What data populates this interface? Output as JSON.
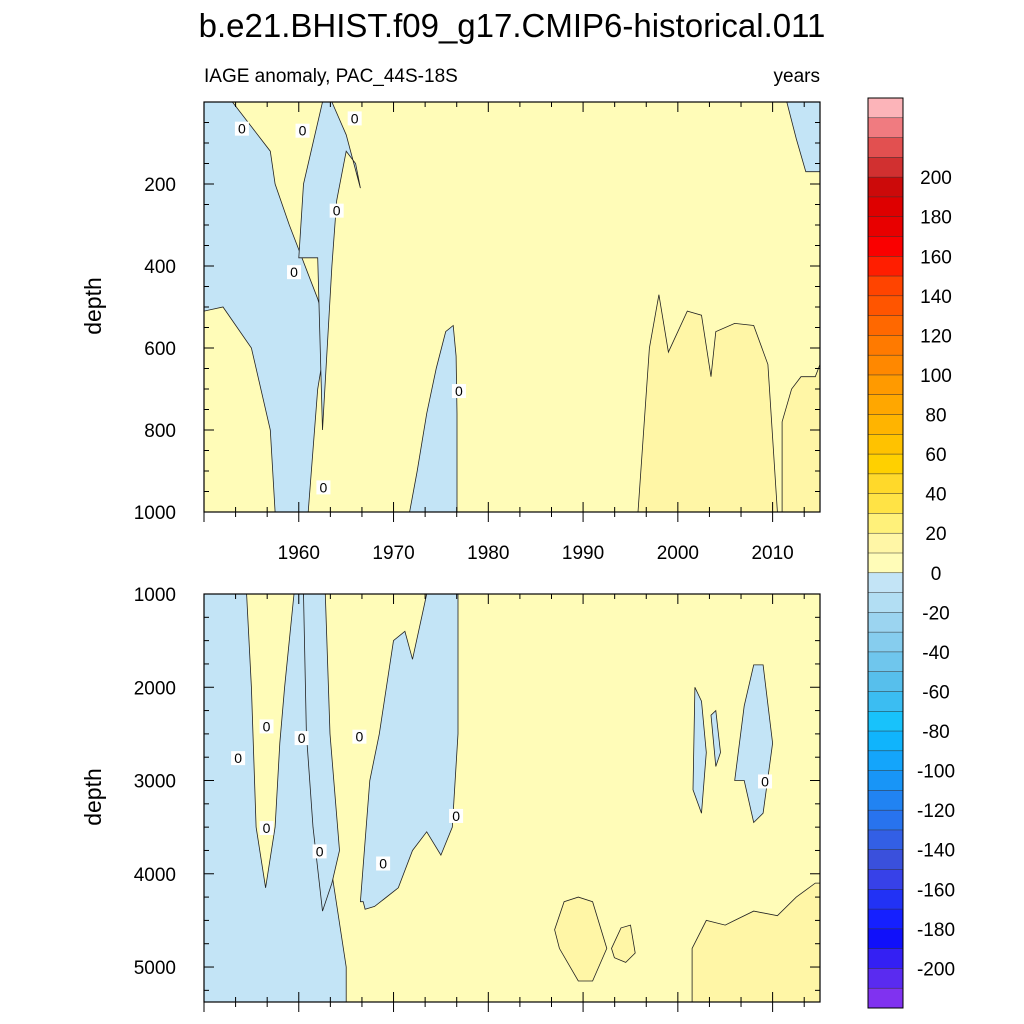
{
  "chart_data": [
    {
      "type": "contour",
      "panel": "upper",
      "title": "b.e21.BHIST.f09_g17.CMIP6-historical.011",
      "left_label": "IAGE anomaly, PAC_44S-18S",
      "right_label": "years",
      "ylabel": "depth",
      "xlim": [
        1950,
        2015
      ],
      "ylim": [
        1000,
        0
      ],
      "x_ticks": [
        1960,
        1970,
        1980,
        1990,
        2000,
        2010
      ],
      "y_ticks": [
        200,
        400,
        600,
        800,
        1000
      ],
      "y_ticks_labeled": [
        "200",
        "400",
        "600",
        "800",
        "1000"
      ],
      "x_ticks_labeled": [
        "1960",
        "1970",
        "1980",
        "1990",
        "2000",
        "2010"
      ],
      "zero_contour_labels": [
        {
          "text": "0",
          "x": 1954.0,
          "y": 65
        },
        {
          "text": "0",
          "x": 1960.4,
          "y": 70
        },
        {
          "text": "0",
          "x": 1965.9,
          "y": 40
        },
        {
          "text": "0",
          "x": 1964.0,
          "y": 265
        },
        {
          "text": "0",
          "x": 1959.5,
          "y": 415
        },
        {
          "text": "0",
          "x": 1976.9,
          "y": 705
        },
        {
          "text": "0",
          "x": 1962.6,
          "y": 940
        }
      ],
      "regions": [
        {
          "level": "-20 to 0",
          "x": [
            1950,
            1950,
            1953,
            1955,
            1957,
            1957.5,
            1959,
            1960,
            1961,
            1962,
            1963,
            1962,
            1961,
            1959,
            1957.5,
            1957,
            1955,
            1952,
            1950
          ],
          "y": [
            510,
            0,
            0,
            60,
            120,
            200,
            300,
            360,
            420,
            480,
            560,
            700,
            1000,
            1000,
            1000,
            800,
            600,
            500,
            510
          ]
        },
        {
          "level": "-20 to 0",
          "x": [
            1960,
            1960.5,
            1961.5,
            1962.5,
            1963.5,
            1965,
            1966.5,
            1966,
            1965,
            1964,
            1963.5,
            1963,
            1962.5,
            1962
          ],
          "y": [
            380,
            200,
            100,
            0,
            0,
            80,
            210,
            150,
            120,
            240,
            400,
            600,
            800,
            380
          ]
        },
        {
          "level": "-20 to 0",
          "x": [
            1971.7,
            1972.5,
            1973.5,
            1974.5,
            1975.5,
            1976.3,
            1976.6,
            1976.7,
            1976.7,
            1971.7
          ],
          "y": [
            1000,
            900,
            760,
            650,
            560,
            545,
            620,
            760,
            1000,
            1000
          ]
        },
        {
          "level": "-20 to 0",
          "x": [
            2011.5,
            2012.5,
            2013.5,
            2015,
            2015,
            2012.5,
            2011.5
          ],
          "y": [
            0,
            90,
            170,
            170,
            0,
            0,
            0
          ]
        },
        {
          "level": "0 to 10",
          "x": [
            1970,
            1975,
            1980,
            1990,
            1995,
            2000,
            2005,
            2010,
            2015
          ],
          "y": [
            500,
            500,
            500,
            500,
            500,
            500,
            500,
            500,
            500
          ]
        },
        {
          "level": "10 to 20",
          "x": [
            1995.8,
            1997,
            1998,
            1999,
            2001,
            2002.5,
            2003.5,
            2004,
            2006,
            2008,
            2009.5,
            2010.5,
            2010.5,
            1995.8
          ],
          "y": [
            1000,
            600,
            470,
            610,
            510,
            520,
            670,
            560,
            540,
            545,
            640,
            1000,
            1000,
            1000
          ]
        },
        {
          "level": "10 to 20",
          "x": [
            2011,
            2012,
            2013,
            2014.5,
            2015,
            2015,
            2011
          ],
          "y": [
            780,
            700,
            670,
            670,
            640,
            1000,
            1000
          ]
        }
      ]
    },
    {
      "type": "contour",
      "panel": "lower",
      "ylabel": "depth",
      "xlim": [
        1950,
        2015
      ],
      "ylim": [
        5375,
        1000
      ],
      "x_ticks": [
        1960,
        1970,
        1980,
        1990,
        2000,
        2010
      ],
      "y_ticks": [
        1000,
        2000,
        3000,
        4000,
        5000
      ],
      "y_ticks_labeled": [
        "1000",
        "2000",
        "3000",
        "4000",
        "5000"
      ],
      "zero_contour_labels": [
        {
          "text": "0",
          "x": 1953.6,
          "y": 2760
        },
        {
          "text": "0",
          "x": 1956.6,
          "y": 2420
        },
        {
          "text": "0",
          "x": 1960.3,
          "y": 2545
        },
        {
          "text": "0",
          "x": 1966.4,
          "y": 2530
        },
        {
          "text": "0",
          "x": 1956.6,
          "y": 3510
        },
        {
          "text": "0",
          "x": 1962.2,
          "y": 3760
        },
        {
          "text": "0",
          "x": 1968.9,
          "y": 3890
        },
        {
          "text": "0",
          "x": 1976.6,
          "y": 3380
        },
        {
          "text": "0",
          "x": 2009.2,
          "y": 3010
        }
      ],
      "regions": [
        {
          "level": "-20 to 0",
          "x": [
            1950,
            1953,
            1954.5,
            1955,
            1955.5,
            1956.5,
            1957.5,
            1958,
            1958.5,
            1959,
            1959.5,
            1960,
            1960.5,
            1962,
            1965,
            1965,
            1950
          ],
          "y": [
            1000,
            1000,
            1000,
            2000,
            3500,
            4150,
            3500,
            2600,
            2000,
            1500,
            1000,
            1000,
            1000,
            3000,
            5000,
            5375,
            5375
          ]
        },
        {
          "level": "-20 to 0",
          "x": [
            1960.5,
            1961.5,
            1962.8,
            1963.3,
            1964.3,
            1963.5,
            1962.5,
            1961.5,
            1960.8
          ],
          "y": [
            1000,
            1000,
            1000,
            2500,
            3750,
            4100,
            4400,
            3500,
            2500
          ]
        },
        {
          "level": "-20 to 0",
          "x": [
            1966.5,
            1967.5,
            1968.5,
            1970,
            1971.2,
            1972,
            1973.5,
            1975.2,
            1976.8,
            1976.8,
            1976.2,
            1975,
            1973.5,
            1972,
            1970.5,
            1969,
            1968,
            1967,
            1966.8
          ],
          "y": [
            4300,
            3000,
            2500,
            1500,
            1400,
            1700,
            1000,
            1000,
            1000,
            2500,
            3500,
            3800,
            3550,
            3750,
            4150,
            4270,
            4350,
            4380,
            4300
          ]
        },
        {
          "level": "-20 to 0",
          "x": [
            2006,
            2007,
            2008,
            2009,
            2010,
            2009,
            2008,
            2007
          ],
          "y": [
            3000,
            2200,
            1760,
            1760,
            2600,
            3350,
            3450,
            3000
          ]
        },
        {
          "level": "-20 to 0",
          "x": [
            2001.8,
            2002.5,
            2003,
            2002.5,
            2001.6
          ],
          "y": [
            2000,
            2150,
            2700,
            3350,
            3100
          ]
        },
        {
          "level": "-20 to 0",
          "x": [
            2003.5,
            2004,
            2004.5,
            2004
          ],
          "y": [
            2300,
            2250,
            2700,
            2850
          ]
        },
        {
          "level": "10 to 20",
          "x": [
            2001.5,
            2003,
            2005,
            2006,
            2008,
            2010.5,
            2012.5,
            2014.5,
            2015,
            2015,
            2001.5
          ],
          "y": [
            4800,
            4500,
            4550,
            4500,
            4400,
            4450,
            4250,
            4100,
            4100,
            5375,
            5375
          ]
        },
        {
          "level": "10 to 20",
          "x": [
            1987,
            1988,
            1989.5,
            1991,
            1992.5,
            1991,
            1989.5,
            1987.5
          ],
          "y": [
            4600,
            4300,
            4250,
            4300,
            4800,
            5150,
            5150,
            4800
          ]
        },
        {
          "level": "10 to 20",
          "x": [
            1993,
            1994,
            1995,
            1995.5,
            1994.5,
            1993.3
          ],
          "y": [
            4800,
            4580,
            4550,
            4850,
            4950,
            4900
          ]
        }
      ]
    }
  ],
  "colorbar": {
    "labels": [
      "200",
      "180",
      "160",
      "140",
      "120",
      "100",
      "80",
      "60",
      "40",
      "20",
      "0",
      "-20",
      "-40",
      "-60",
      "-80",
      "-100",
      "-120",
      "-140",
      "-160",
      "-180",
      "-200"
    ],
    "colors_top_to_bottom": [
      "#fcb4b9",
      "#f07b80",
      "#e25050",
      "#d13030",
      "#cc0a0a",
      "#de0000",
      "#e80000",
      "#fa0000",
      "#ff1e00",
      "#ff4400",
      "#ff5500",
      "#ff6800",
      "#ff7a00",
      "#ff8800",
      "#ff9a00",
      "#ffa700",
      "#ffb400",
      "#ffc200",
      "#ffd000",
      "#ffd92a",
      "#ffe345",
      "#fff17a",
      "#fff6a6",
      "#fffcb8",
      "#c3e4f6",
      "#b2def3",
      "#9bd4f0",
      "#86cdee",
      "#6fc6ed",
      "#57bfec",
      "#3bbdf2",
      "#18c2fb",
      "#10b4fc",
      "#14a5fb",
      "#1895f7",
      "#2183f2",
      "#2873ee",
      "#335fe5",
      "#3a50dc",
      "#3741e8",
      "#2232f5",
      "#1520ff",
      "#1010fa",
      "#3420f3",
      "#5a2bf0",
      "#8032f0"
    ]
  },
  "colors": {
    "neg_fill": "#c3e4f6",
    "pos_low_fill": "#fffcb8",
    "pos_mid_fill": "#fff6a6",
    "contour_line": "#222222",
    "axis": "#000000"
  }
}
